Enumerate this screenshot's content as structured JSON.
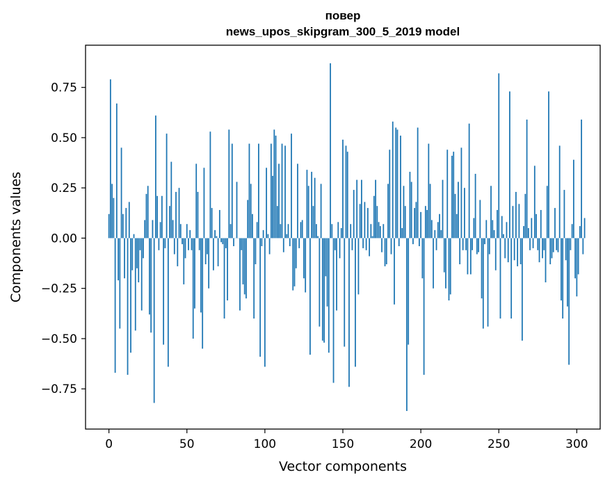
{
  "chart_data": {
    "type": "bar",
    "title": "повер",
    "subtitle": "news_upos_skipgram_300_5_2019 model",
    "xlabel": "Vector components",
    "ylabel": "Components values",
    "xlim": [
      -15,
      315
    ],
    "ylim": [
      -0.95,
      0.96
    ],
    "xticks": [
      0,
      50,
      100,
      150,
      200,
      250,
      300
    ],
    "xtick_labels": [
      "0",
      "50",
      "100",
      "150",
      "200",
      "250",
      "300"
    ],
    "yticks": [
      -0.75,
      -0.5,
      -0.25,
      0.0,
      0.25,
      0.5,
      0.75
    ],
    "ytick_labels": [
      "−0.75",
      "−0.50",
      "−0.25",
      "0.00",
      "0.25",
      "0.50",
      "0.75"
    ],
    "grid": false,
    "color": "#1f77b4",
    "values": [
      0.12,
      0.79,
      0.27,
      0.2,
      -0.67,
      0.67,
      -0.21,
      -0.45,
      0.45,
      0.12,
      -0.2,
      0.15,
      -0.68,
      0.18,
      -0.57,
      -0.16,
      0.02,
      -0.46,
      -0.15,
      -0.22,
      -0.06,
      -0.36,
      -0.1,
      0.09,
      0.22,
      0.26,
      -0.38,
      -0.47,
      0.09,
      -0.82,
      0.61,
      0.21,
      -0.06,
      0.08,
      0.21,
      -0.53,
      -0.05,
      0.52,
      -0.64,
      0.16,
      0.38,
      0.09,
      -0.08,
      0.23,
      -0.14,
      0.25,
      0.07,
      -0.03,
      -0.23,
      -0.1,
      0.07,
      -0.06,
      0.04,
      -0.06,
      -0.5,
      -0.35,
      0.37,
      0.23,
      -0.06,
      -0.37,
      -0.55,
      0.35,
      -0.13,
      -0.08,
      -0.25,
      0.53,
      0.15,
      -0.16,
      0.04,
      0.01,
      -0.14,
      0.14,
      -0.02,
      -0.03,
      -0.4,
      -0.05,
      -0.31,
      0.54,
      0.07,
      0.47,
      -0.04,
      0.0,
      0.28,
      0.0,
      -0.36,
      -0.06,
      -0.23,
      -0.28,
      -0.3,
      0.19,
      0.47,
      0.27,
      0.12,
      -0.4,
      -0.13,
      0.08,
      0.47,
      -0.59,
      -0.04,
      0.04,
      -0.64,
      0.35,
      0.02,
      -0.08,
      0.47,
      0.31,
      0.54,
      0.51,
      0.16,
      0.37,
      0.07,
      0.47,
      -0.07,
      0.46,
      0.02,
      0.07,
      -0.04,
      0.52,
      -0.26,
      -0.24,
      -0.15,
      0.37,
      -0.05,
      0.08,
      0.09,
      -0.2,
      -0.27,
      0.34,
      0.26,
      -0.58,
      0.33,
      0.16,
      0.3,
      0.07,
      0.01,
      -0.44,
      0.27,
      -0.51,
      -0.52,
      -0.19,
      -0.34,
      -0.57,
      0.87,
      0.07,
      -0.72,
      -0.06,
      -0.36,
      0.08,
      -0.1,
      0.05,
      0.49,
      -0.54,
      0.46,
      0.43,
      -0.74,
      0.07,
      -0.06,
      0.24,
      -0.64,
      0.29,
      -0.28,
      0.17,
      0.29,
      -0.05,
      0.18,
      -0.06,
      0.15,
      -0.09,
      0.07,
      0.01,
      0.21,
      0.29,
      0.16,
      0.08,
      0.06,
      -0.07,
      0.07,
      -0.14,
      -0.13,
      0.27,
      0.44,
      -0.08,
      0.58,
      -0.33,
      0.55,
      0.54,
      -0.04,
      0.51,
      0.05,
      0.26,
      0.16,
      -0.86,
      -0.53,
      0.33,
      0.28,
      -0.03,
      0.15,
      0.18,
      0.55,
      -0.04,
      0.13,
      -0.2,
      -0.68,
      0.16,
      0.14,
      0.47,
      0.27,
      0.09,
      -0.25,
      0.04,
      -0.06,
      0.08,
      0.12,
      0.04,
      0.29,
      -0.17,
      -0.25,
      0.44,
      -0.31,
      -0.28,
      0.41,
      0.43,
      0.22,
      0.12,
      0.28,
      -0.13,
      0.45,
      -0.06,
      0.25,
      -0.06,
      -0.18,
      0.57,
      -0.18,
      -0.06,
      0.1,
      0.32,
      -0.08,
      -0.07,
      0.19,
      -0.3,
      -0.45,
      -0.03,
      0.09,
      -0.44,
      -0.08,
      0.26,
      0.09,
      0.04,
      -0.16,
      0.14,
      0.82,
      -0.4,
      0.11,
      0.02,
      -0.1,
      0.08,
      -0.12,
      0.73,
      -0.4,
      0.16,
      -0.11,
      0.23,
      -0.14,
      0.17,
      -0.13,
      -0.51,
      0.06,
      0.22,
      0.59,
      0.05,
      -0.06,
      0.1,
      -0.05,
      0.36,
      0.12,
      -0.06,
      -0.12,
      0.14,
      -0.1,
      -0.06,
      -0.22,
      0.26,
      0.73,
      -0.13,
      -0.1,
      -0.07,
      0.15,
      -0.06,
      -0.07,
      0.46,
      -0.31,
      -0.4,
      0.24,
      -0.11,
      -0.34,
      -0.63,
      -0.06,
      0.07,
      0.39,
      -0.2,
      -0.29,
      -0.18,
      0.06,
      0.59,
      -0.08,
      0.1
    ]
  }
}
